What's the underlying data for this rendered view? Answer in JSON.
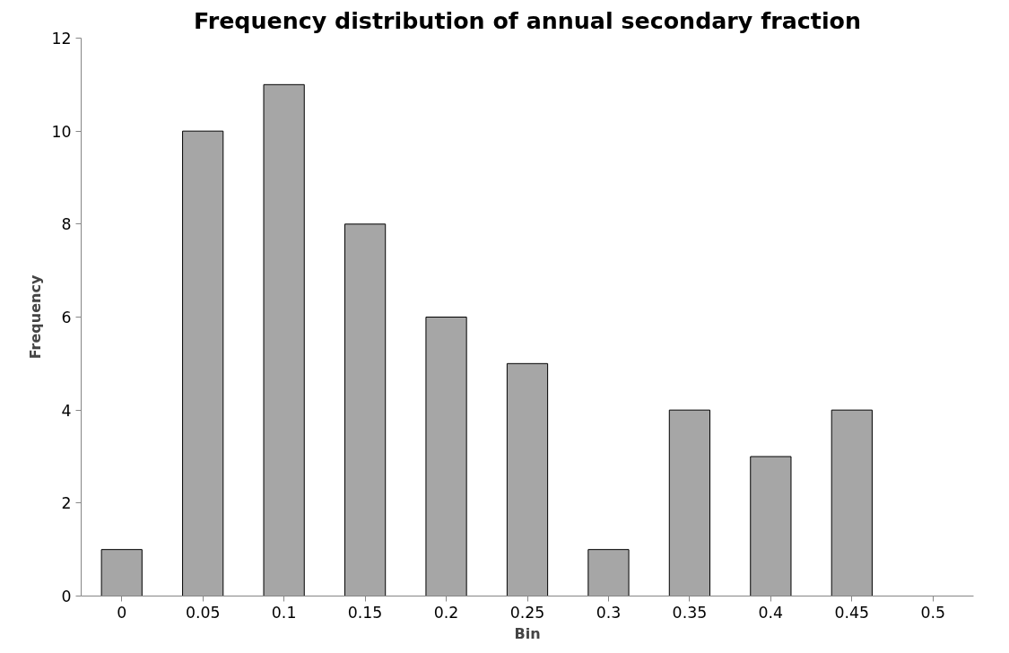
{
  "chart_data": {
    "type": "bar",
    "title": "Frequency distribution of annual secondary fraction",
    "xlabel": "Bin",
    "ylabel": "Frequency",
    "categories": [
      "0",
      "0.05",
      "0.1",
      "0.15",
      "0.2",
      "0.25",
      "0.3",
      "0.35",
      "0.4",
      "0.45",
      "0.5"
    ],
    "values": [
      1,
      10,
      11,
      8,
      6,
      5,
      1,
      4,
      3,
      4,
      0
    ],
    "color": "#a6a6a6",
    "ylim": [
      0,
      12
    ],
    "yticks": [
      0,
      2,
      4,
      6,
      8,
      10,
      12
    ],
    "grid": false
  }
}
